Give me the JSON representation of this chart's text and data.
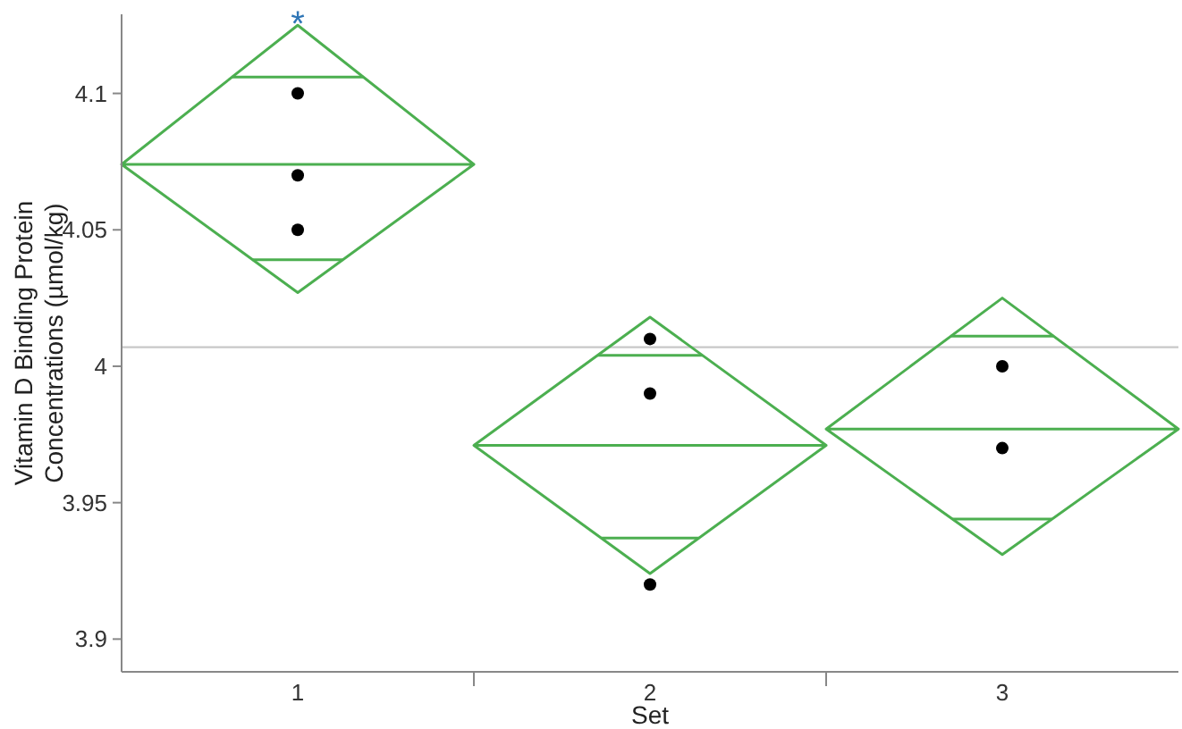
{
  "chart_data": {
    "type": "line",
    "xlabel": "Set",
    "ylabel": "Vitamin D Binding Protein Concentrations (µmol/kg)",
    "series": [
      {
        "color": "#4caf50",
        "marker": "none",
        "x": [
          0.5,
          1,
          1.5,
          1,
          0.5,
          1.5
        ],
        "values": [
          4.074,
          4.125,
          4.074,
          4.027,
          4.074,
          4.074
        ]
      },
      {
        "color": "#4caf50",
        "marker": "none",
        "x": [
          0.814,
          1.186,
          null,
          0.872,
          1.128
        ],
        "values": [
          4.106,
          4.106,
          null,
          4.039,
          4.039
        ]
      },
      {
        "color": "#4caf50",
        "marker": "none",
        "x": [
          1.5,
          2,
          2.5,
          2,
          1.5,
          2.5
        ],
        "values": [
          3.971,
          4.018,
          3.971,
          3.924,
          3.971,
          3.971
        ]
      },
      {
        "color": "#4caf50",
        "marker": "none",
        "x": [
          1.851,
          2.149,
          null,
          1.862,
          2.138
        ],
        "values": [
          4.004,
          4.004,
          null,
          3.937,
          3.937
        ]
      },
      {
        "color": "#4caf50",
        "marker": "none",
        "x": [
          2.5,
          3,
          3.5,
          3,
          2.5,
          3.5
        ],
        "values": [
          3.977,
          4.025,
          3.977,
          3.931,
          3.977,
          3.977
        ]
      },
      {
        "color": "#4caf50",
        "marker": "none",
        "x": [
          2.854,
          3.146,
          null,
          2.859,
          3.141
        ],
        "values": [
          4.011,
          4.011,
          null,
          3.944,
          3.944
        ]
      },
      {
        "type": "scatter",
        "color": "#000000",
        "marker": "circle",
        "x": [
          1,
          1,
          1,
          2,
          2,
          2,
          3,
          3
        ],
        "values": [
          4.1,
          4.07,
          4.05,
          4.01,
          3.99,
          3.92,
          4.0,
          3.97
        ]
      }
    ],
    "xlim": [
      0.5,
      3.5
    ],
    "xticks": [
      1,
      {
        "value": 1.5,
        "label": null
      },
      2,
      {
        "value": 2.5,
        "label": null
      },
      3
    ],
    "ylim": [
      3.888,
      4.129
    ],
    "yticks": [
      3.9,
      3.95,
      4,
      4.05,
      4.1
    ],
    "ref_lines": [
      {
        "axis": "y",
        "value": 4.007,
        "color": "#c8c8c8"
      }
    ],
    "annotations": [
      "*"
    ],
    "grid": false
  }
}
